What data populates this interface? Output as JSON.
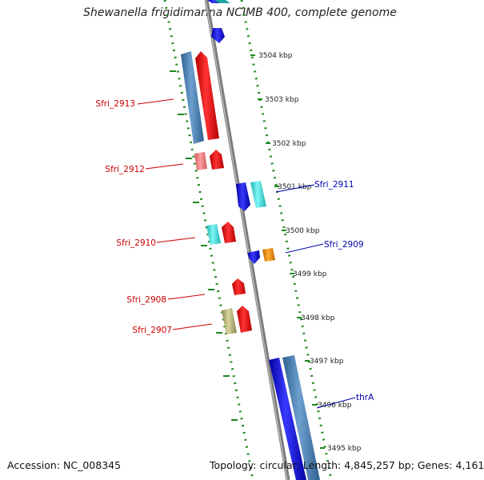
{
  "title": "Shewanella frigidimarina NCIMB 400, complete genome",
  "footer": {
    "accession": "Accession: NC_008345",
    "summary": "Topology: circular; Length: 4,845,257 bp; Genes: 4,161"
  },
  "ticks": [
    "3504 kbp",
    "3503 kbp",
    "3502 kbp",
    "3501 kbp",
    "3500 kbp",
    "3499 kbp",
    "3498 kbp",
    "3497 kbp",
    "3496 kbp",
    "3495 kbp"
  ],
  "gene_labels": {
    "left": [
      "Sfri_2913",
      "Sfri_2912",
      "Sfri_2910",
      "Sfri_2908",
      "Sfri_2907"
    ],
    "right": [
      "Sfri_2911",
      "Sfri_2909",
      "thrA"
    ]
  },
  "colors": {
    "label_left": "#cc0000",
    "label_right": "#0000aa",
    "axis": "#888888",
    "dots": "#1f8a1f"
  }
}
